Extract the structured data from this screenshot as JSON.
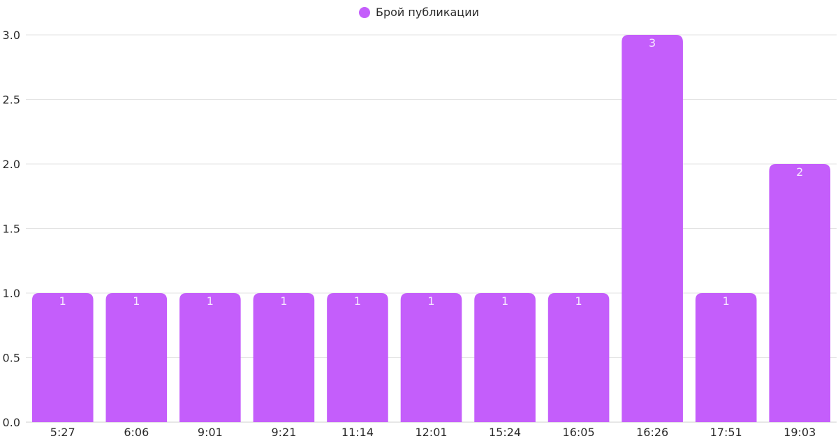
{
  "chart_data": {
    "type": "bar",
    "categories": [
      "5:27",
      "6:06",
      "9:01",
      "9:21",
      "11:14",
      "12:01",
      "15:24",
      "16:05",
      "16:26",
      "17:51",
      "19:03"
    ],
    "series": [
      {
        "name": "Брой публикации",
        "values": [
          1,
          1,
          1,
          1,
          1,
          1,
          1,
          1,
          3,
          1,
          2
        ],
        "color": "#c45efb"
      }
    ],
    "ylim": [
      0,
      3
    ],
    "y_ticks": [
      "0.0",
      "0.5",
      "1.0",
      "1.5",
      "2.0",
      "2.5",
      "3.0"
    ],
    "grid": true,
    "legend_position": "top-center",
    "data_labels": true
  }
}
